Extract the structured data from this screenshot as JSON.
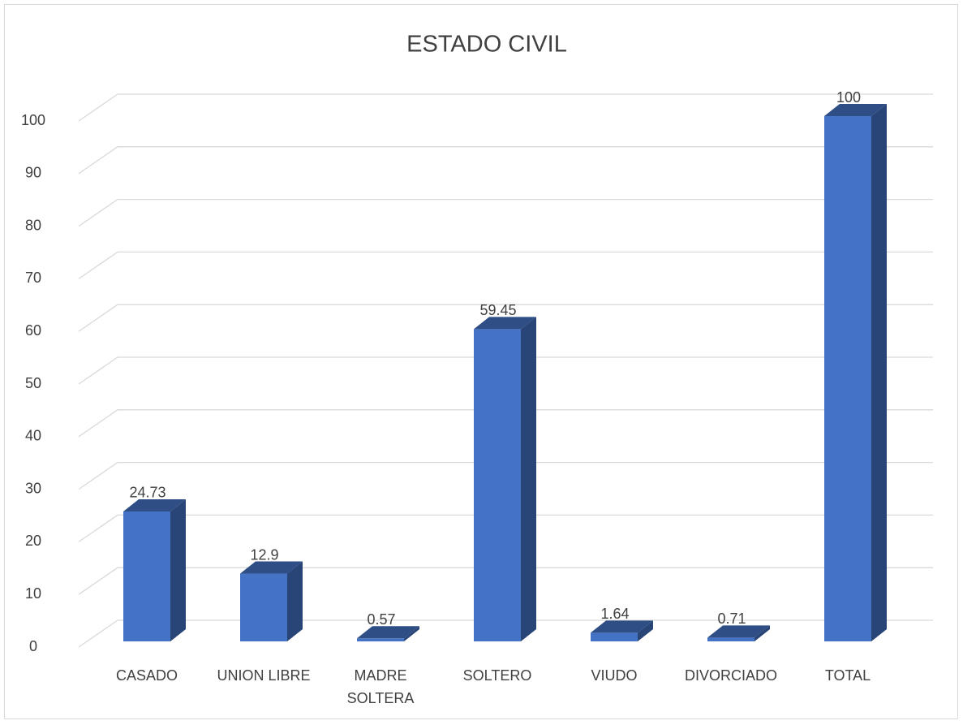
{
  "chart_data": {
    "type": "bar3d",
    "title": "ESTADO CIVIL",
    "categories": [
      "CASADO",
      "UNION LIBRE",
      "MADRE SOLTERA",
      "SOLTERO",
      "VIUDO",
      "DIVORCIADO",
      "TOTAL"
    ],
    "values": [
      24.73,
      12.9,
      0.57,
      59.45,
      1.64,
      0.71,
      100
    ],
    "color": "#4472c4",
    "ylim": [
      0,
      100
    ],
    "yticks": [
      0,
      10,
      20,
      30,
      40,
      50,
      60,
      70,
      80,
      90,
      100
    ],
    "grid": true
  }
}
